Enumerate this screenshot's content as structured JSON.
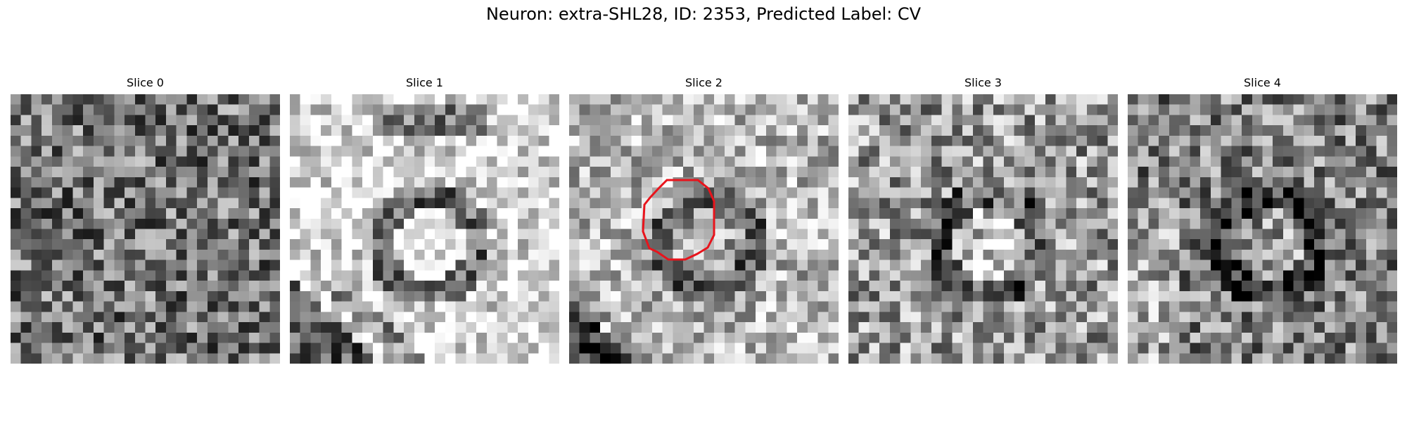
{
  "figure": {
    "title": "Neuron: extra-SHL28, ID: 2353, Predicted Label: CV"
  },
  "slices": [
    {
      "label": "Slice 0",
      "pattern": "noise",
      "brightness": 0.45,
      "contrast": 0.35
    },
    {
      "label": "Slice 1",
      "pattern": "membrane-bright",
      "brightness": 0.7,
      "contrast": 0.3
    },
    {
      "label": "Slice 2",
      "pattern": "vesicle-mid",
      "brightness": 0.6,
      "contrast": 0.3,
      "has_contour": true
    },
    {
      "label": "Slice 3",
      "pattern": "vesicle-faint",
      "brightness": 0.55,
      "contrast": 0.35
    },
    {
      "label": "Slice 4",
      "pattern": "vesicle-dark",
      "brightness": 0.5,
      "contrast": 0.35
    }
  ],
  "contour": {
    "color": "#e8141c",
    "slice_index": 2
  },
  "colormap": "gray",
  "grid_resolution": 26
}
